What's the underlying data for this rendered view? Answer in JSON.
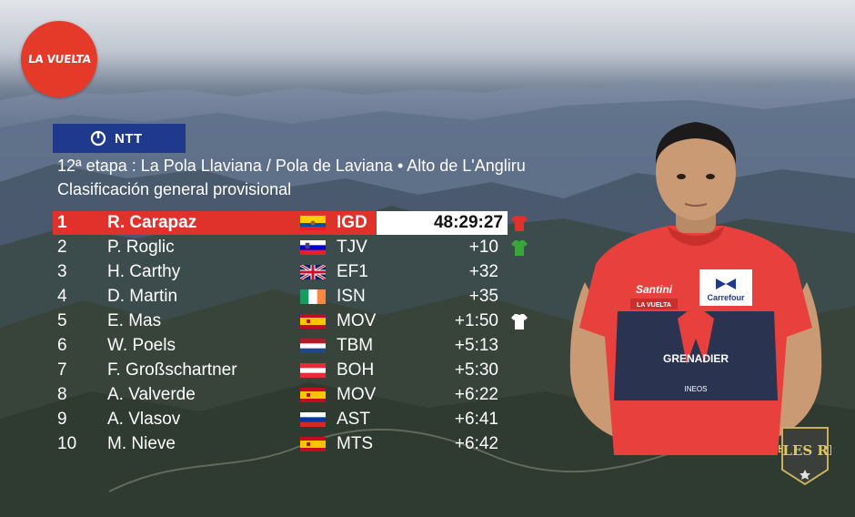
{
  "logo": {
    "text": "LA VUELTA",
    "color": "#e53a2a"
  },
  "sponsor": {
    "label": "NTT",
    "icon": "power-ring-icon",
    "color": "#1f3a8c"
  },
  "stage_title": "12ª etapa : La Pola Llaviana / Pola de Laviana • Alto de L'Angliru",
  "subtitle": "Clasificación general provisional",
  "standings": [
    {
      "pos": "1",
      "name": "R. Carapaz",
      "flag": "ecuador",
      "team": "IGD",
      "gap": "48:29:27",
      "jersey": "red"
    },
    {
      "pos": "2",
      "name": "P. Roglic",
      "flag": "slovenia",
      "team": "TJV",
      "gap": "+10",
      "jersey": "green"
    },
    {
      "pos": "3",
      "name": "H. Carthy",
      "flag": "uk",
      "team": "EF1",
      "gap": "+32",
      "jersey": ""
    },
    {
      "pos": "4",
      "name": "D. Martin",
      "flag": "ireland",
      "team": "ISN",
      "gap": "+35",
      "jersey": ""
    },
    {
      "pos": "5",
      "name": "E. Mas",
      "flag": "spain",
      "team": "MOV",
      "gap": "+1:50",
      "jersey": "white"
    },
    {
      "pos": "6",
      "name": "W. Poels",
      "flag": "netherlands",
      "team": "TBM",
      "gap": "+5:13",
      "jersey": ""
    },
    {
      "pos": "7",
      "name": "F. Großschartner",
      "flag": "austria",
      "team": "BOH",
      "gap": "+5:30",
      "jersey": ""
    },
    {
      "pos": "8",
      "name": "A. Valverde",
      "flag": "spain",
      "team": "MOV",
      "gap": "+6:22",
      "jersey": ""
    },
    {
      "pos": "9",
      "name": "A. Vlasov",
      "flag": "russia",
      "team": "AST",
      "gap": "+6:41",
      "jersey": ""
    },
    {
      "pos": "10",
      "name": "M. Nieve",
      "flag": "spain",
      "team": "MTS",
      "gap": "+6:42",
      "jersey": ""
    }
  ],
  "rider_jersey": {
    "brand": "Santini",
    "sponsor": "Carrefour",
    "team_text": "GRENADIER",
    "sub_text": "INEOS",
    "race_text": "LA VUELTA",
    "color": "#e8403c"
  },
  "badge": {
    "text": "#LES RP"
  },
  "colors": {
    "leader_red": "#e0322a",
    "accent_blue": "#1f3a8c"
  }
}
